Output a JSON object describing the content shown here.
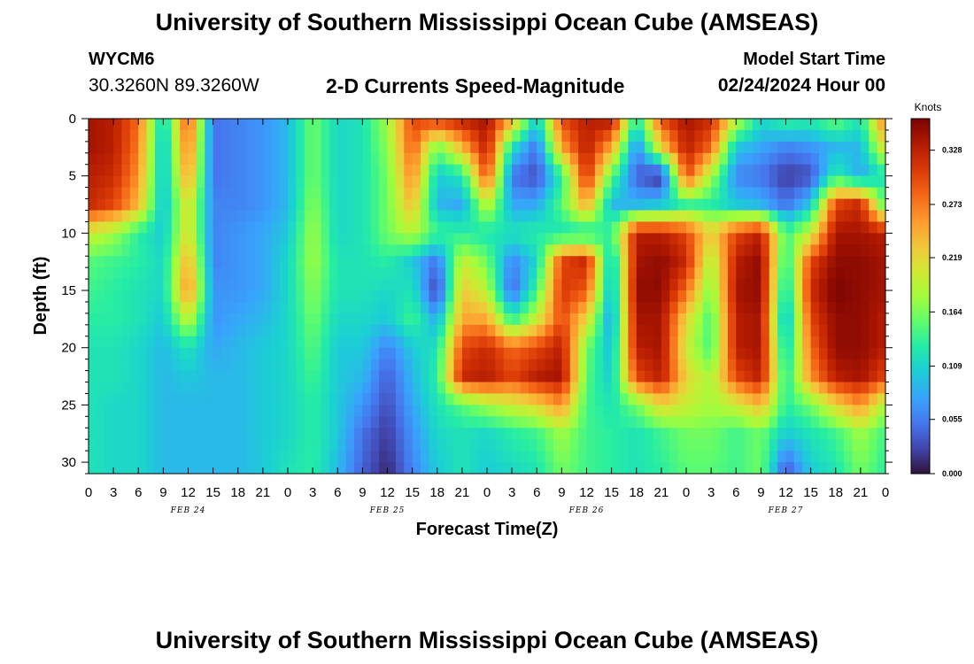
{
  "header": {
    "title": "University of Southern Mississippi Ocean Cube (AMSEAS)",
    "station": "WYCM6",
    "coords": "30.3260N  89.3260W",
    "subtitle": "2-D Currents Speed-Magnitude",
    "model_start_label": "Model Start Time",
    "model_start_value": "02/24/2024 Hour 00"
  },
  "footer": {
    "title": "University of Southern Mississippi Ocean Cube (AMSEAS)"
  },
  "chart_data": {
    "type": "heatmap",
    "title": "2-D Currents Speed-Magnitude",
    "xlabel": "Forecast Time(Z)",
    "ylabel": "Depth (ft)",
    "x_range_hours": [
      0,
      96
    ],
    "y_range_ft": [
      0,
      31
    ],
    "x_ticks": [
      "0",
      "3",
      "6",
      "9",
      "12",
      "15",
      "18",
      "21",
      "0",
      "3",
      "6",
      "9",
      "12",
      "15",
      "18",
      "21",
      "0",
      "3",
      "6",
      "9",
      "12",
      "15",
      "18",
      "21",
      "0",
      "3",
      "6",
      "9",
      "12",
      "15",
      "18",
      "21",
      "0"
    ],
    "y_ticks": [
      "0",
      "5",
      "10",
      "15",
      "20",
      "25",
      "30"
    ],
    "date_labels": [
      {
        "label": "FEB 24",
        "hour": 12
      },
      {
        "label": "FEB 25",
        "hour": 36
      },
      {
        "label": "FEB 26",
        "hour": 60
      },
      {
        "label": "FEB 27",
        "hour": 84
      }
    ],
    "colorbar": {
      "unit": "Knots",
      "ticks": [
        "0.000",
        "0.055",
        "0.109",
        "0.164",
        "0.219",
        "0.273",
        "0.328"
      ],
      "min": 0.0,
      "max": 0.36
    },
    "depths_ft": [
      0,
      2.5,
      5,
      7.5,
      10,
      12.5,
      15,
      17.5,
      20,
      22.5,
      25,
      27.5,
      31
    ],
    "times_h": [
      0,
      3,
      6,
      9,
      12,
      15,
      18,
      21,
      24,
      27,
      30,
      33,
      36,
      39,
      42,
      45,
      48,
      51,
      54,
      57,
      60,
      63,
      66,
      69,
      72,
      75,
      78,
      81,
      84,
      87,
      90,
      93,
      96
    ],
    "speed_knots": [
      [
        0.34,
        0.33,
        0.28,
        0.1,
        0.3,
        0.05,
        0.06,
        0.07,
        0.09,
        0.16,
        0.11,
        0.12,
        0.18,
        0.3,
        0.31,
        0.33,
        0.34,
        0.25,
        0.1,
        0.3,
        0.33,
        0.34,
        0.12,
        0.3,
        0.34,
        0.32,
        0.2,
        0.11,
        0.14,
        0.13,
        0.16,
        0.12,
        0.28
      ],
      [
        0.34,
        0.33,
        0.27,
        0.09,
        0.28,
        0.05,
        0.06,
        0.07,
        0.09,
        0.16,
        0.11,
        0.12,
        0.17,
        0.29,
        0.16,
        0.24,
        0.33,
        0.12,
        0.05,
        0.25,
        0.33,
        0.25,
        0.06,
        0.22,
        0.33,
        0.28,
        0.1,
        0.08,
        0.06,
        0.07,
        0.09,
        0.09,
        0.22
      ],
      [
        0.33,
        0.32,
        0.26,
        0.09,
        0.26,
        0.05,
        0.06,
        0.07,
        0.09,
        0.16,
        0.11,
        0.12,
        0.16,
        0.27,
        0.1,
        0.12,
        0.3,
        0.05,
        0.03,
        0.13,
        0.32,
        0.15,
        0.04,
        0.01,
        0.3,
        0.18,
        0.06,
        0.05,
        0.02,
        0.03,
        0.13,
        0.08,
        0.12
      ],
      [
        0.32,
        0.3,
        0.24,
        0.09,
        0.22,
        0.06,
        0.06,
        0.07,
        0.09,
        0.17,
        0.11,
        0.12,
        0.16,
        0.24,
        0.09,
        0.08,
        0.2,
        0.08,
        0.08,
        0.15,
        0.25,
        0.09,
        0.09,
        0.1,
        0.14,
        0.13,
        0.1,
        0.09,
        0.05,
        0.1,
        0.3,
        0.32,
        0.14
      ],
      [
        0.2,
        0.18,
        0.13,
        0.1,
        0.22,
        0.06,
        0.07,
        0.08,
        0.1,
        0.18,
        0.11,
        0.12,
        0.16,
        0.19,
        0.14,
        0.13,
        0.12,
        0.12,
        0.13,
        0.12,
        0.12,
        0.14,
        0.33,
        0.33,
        0.3,
        0.22,
        0.3,
        0.33,
        0.14,
        0.2,
        0.34,
        0.34,
        0.33
      ],
      [
        0.15,
        0.14,
        0.13,
        0.11,
        0.25,
        0.06,
        0.07,
        0.08,
        0.11,
        0.18,
        0.12,
        0.12,
        0.13,
        0.1,
        0.05,
        0.2,
        0.16,
        0.06,
        0.11,
        0.3,
        0.32,
        0.09,
        0.34,
        0.35,
        0.32,
        0.18,
        0.33,
        0.35,
        0.12,
        0.3,
        0.35,
        0.35,
        0.34
      ],
      [
        0.14,
        0.13,
        0.12,
        0.11,
        0.27,
        0.07,
        0.07,
        0.08,
        0.11,
        0.17,
        0.12,
        0.12,
        0.11,
        0.12,
        0.02,
        0.23,
        0.19,
        0.04,
        0.14,
        0.31,
        0.29,
        0.08,
        0.35,
        0.35,
        0.28,
        0.16,
        0.34,
        0.35,
        0.1,
        0.32,
        0.36,
        0.35,
        0.34
      ],
      [
        0.13,
        0.13,
        0.12,
        0.1,
        0.2,
        0.07,
        0.08,
        0.09,
        0.11,
        0.16,
        0.11,
        0.11,
        0.1,
        0.14,
        0.08,
        0.25,
        0.25,
        0.13,
        0.2,
        0.3,
        0.22,
        0.07,
        0.34,
        0.34,
        0.22,
        0.14,
        0.33,
        0.34,
        0.08,
        0.3,
        0.35,
        0.35,
        0.33
      ],
      [
        0.12,
        0.12,
        0.11,
        0.09,
        0.12,
        0.08,
        0.09,
        0.1,
        0.11,
        0.15,
        0.1,
        0.1,
        0.06,
        0.1,
        0.12,
        0.3,
        0.32,
        0.28,
        0.3,
        0.33,
        0.16,
        0.09,
        0.33,
        0.34,
        0.2,
        0.14,
        0.33,
        0.34,
        0.1,
        0.28,
        0.35,
        0.35,
        0.33
      ],
      [
        0.12,
        0.12,
        0.11,
        0.09,
        0.1,
        0.09,
        0.09,
        0.1,
        0.11,
        0.14,
        0.1,
        0.09,
        0.04,
        0.09,
        0.13,
        0.32,
        0.33,
        0.3,
        0.33,
        0.34,
        0.15,
        0.1,
        0.3,
        0.33,
        0.22,
        0.18,
        0.3,
        0.33,
        0.12,
        0.26,
        0.33,
        0.34,
        0.3
      ],
      [
        0.12,
        0.11,
        0.11,
        0.09,
        0.09,
        0.09,
        0.09,
        0.1,
        0.11,
        0.13,
        0.1,
        0.07,
        0.03,
        0.08,
        0.12,
        0.15,
        0.18,
        0.2,
        0.22,
        0.26,
        0.14,
        0.12,
        0.16,
        0.22,
        0.2,
        0.18,
        0.2,
        0.24,
        0.13,
        0.16,
        0.22,
        0.26,
        0.18
      ],
      [
        0.12,
        0.11,
        0.11,
        0.09,
        0.09,
        0.09,
        0.09,
        0.1,
        0.11,
        0.13,
        0.1,
        0.05,
        0.02,
        0.07,
        0.11,
        0.12,
        0.11,
        0.13,
        0.14,
        0.18,
        0.14,
        0.13,
        0.12,
        0.14,
        0.16,
        0.16,
        0.14,
        0.16,
        0.1,
        0.12,
        0.14,
        0.18,
        0.14
      ],
      [
        0.12,
        0.11,
        0.11,
        0.09,
        0.09,
        0.09,
        0.09,
        0.1,
        0.12,
        0.13,
        0.09,
        0.04,
        0.01,
        0.06,
        0.1,
        0.12,
        0.1,
        0.11,
        0.12,
        0.16,
        0.14,
        0.13,
        0.12,
        0.13,
        0.15,
        0.15,
        0.14,
        0.16,
        0.03,
        0.1,
        0.12,
        0.16,
        0.13
      ]
    ]
  }
}
